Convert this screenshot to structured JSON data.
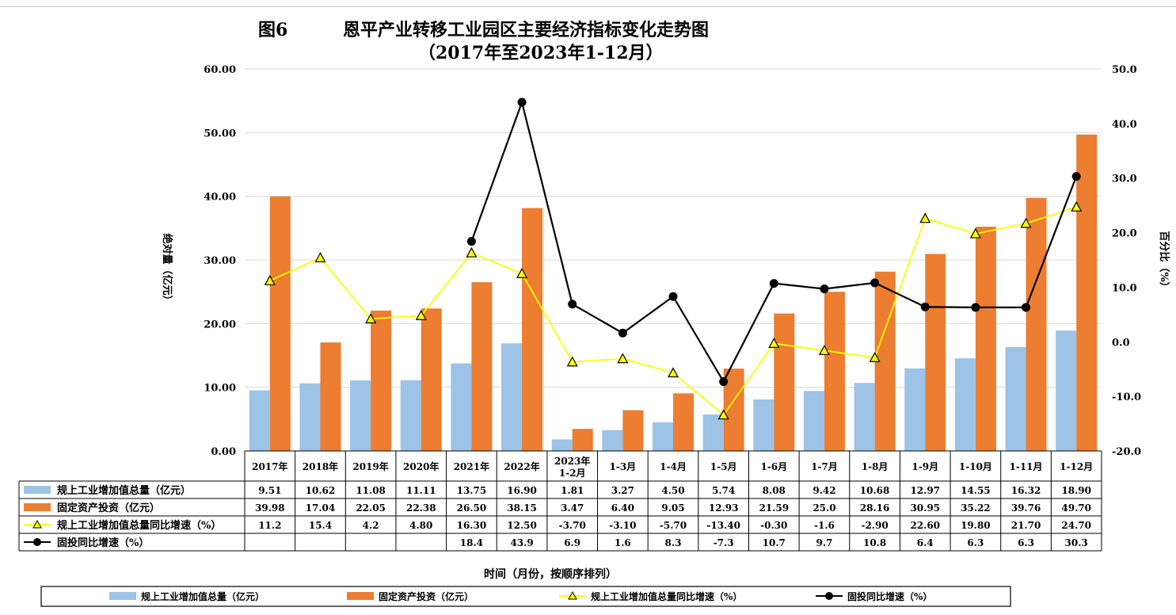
{
  "chart_data": {
    "type": "bar",
    "title_prefix": "图6",
    "title": "恩平产业转移工业园区主要经济指标变化走势图",
    "subtitle": "（2017年至2023年1-12月）",
    "xlabel": "时间（月份，按顺序排列）",
    "ylabel_left": "绝对量（亿元）",
    "ylabel_right": "百分比（%）",
    "ylim_left": [
      0,
      60
    ],
    "ylim_right": [
      -20,
      50
    ],
    "yticks_left": [
      "0.00",
      "10.00",
      "20.00",
      "30.00",
      "40.00",
      "50.00",
      "60.00"
    ],
    "yticks_right": [
      "-20.0",
      "-10.0",
      "0.0",
      "10.0",
      "20.0",
      "30.0",
      "40.0",
      "50.0"
    ],
    "categories": [
      "2017年",
      "2018年",
      "2019年",
      "2020年",
      "2021年",
      "2022年",
      "2023年 1-2月",
      "1-3月",
      "1-4月",
      "1-5月",
      "1-6月",
      "1-7月",
      "1-8月",
      "1-9月",
      "1-10月",
      "1-11月",
      "1-12月"
    ],
    "grid": true,
    "legend_placement": "bottom",
    "series": [
      {
        "name": "规上工业增加值总量（亿元）",
        "kind": "bar",
        "axis": "left",
        "color": "#9dc3e6",
        "values": [
          9.51,
          10.62,
          11.08,
          11.11,
          13.75,
          16.9,
          1.81,
          3.27,
          4.5,
          5.74,
          8.08,
          9.42,
          10.68,
          12.97,
          14.55,
          16.32,
          18.9
        ],
        "labels": [
          "9.51",
          "10.62",
          "11.08",
          "11.11",
          "13.75",
          "16.90",
          "1.81",
          "3.27",
          "4.50",
          "5.74",
          "8.08",
          "9.42",
          "10.68",
          "12.97",
          "14.55",
          "16.32",
          "18.90"
        ]
      },
      {
        "name": "固定资产投资（亿元）",
        "kind": "bar",
        "axis": "left",
        "color": "#ed7d31",
        "values": [
          39.98,
          17.04,
          22.05,
          22.38,
          26.5,
          38.15,
          3.47,
          6.4,
          9.05,
          12.93,
          21.59,
          25.0,
          28.16,
          30.95,
          35.22,
          39.76,
          49.7
        ],
        "labels": [
          "39.98",
          "17.04",
          "22.05",
          "22.38",
          "26.50",
          "38.15",
          "3.47",
          "6.40",
          "9.05",
          "12.93",
          "21.59",
          "25.0",
          "28.16",
          "30.95",
          "35.22",
          "39.76",
          "49.70"
        ]
      },
      {
        "name": "规上工业增加值总量同比增速（%）",
        "kind": "line",
        "axis": "right",
        "color": "#ffff00",
        "marker": "triangle",
        "values": [
          11.2,
          15.4,
          4.2,
          4.8,
          16.3,
          12.5,
          -3.7,
          -3.1,
          -5.7,
          -13.4,
          -0.3,
          -1.6,
          -2.9,
          22.6,
          19.8,
          21.7,
          24.7
        ],
        "labels": [
          "11.2",
          "15.4",
          "4.2",
          "4.80",
          "16.30",
          "12.50",
          "-3.70",
          "-3.10",
          "-5.70",
          "-13.40",
          "-0.30",
          "-1.6",
          "-2.90",
          "22.60",
          "19.80",
          "21.70",
          "24.70"
        ]
      },
      {
        "name": "固投同比增速（%）",
        "kind": "line",
        "axis": "right",
        "color": "#000000",
        "marker": "circle",
        "values": [
          null,
          null,
          null,
          null,
          18.4,
          43.9,
          6.9,
          1.6,
          8.3,
          -7.3,
          10.7,
          9.7,
          10.8,
          6.4,
          6.3,
          6.3,
          30.3
        ],
        "labels": [
          "",
          "",
          "",
          "",
          "18.4",
          "43.9",
          "6.9",
          "1.6",
          "8.3",
          "-7.3",
          "10.7",
          "9.7",
          "10.8",
          "6.4",
          "6.3",
          "6.3",
          "30.3"
        ]
      }
    ]
  }
}
